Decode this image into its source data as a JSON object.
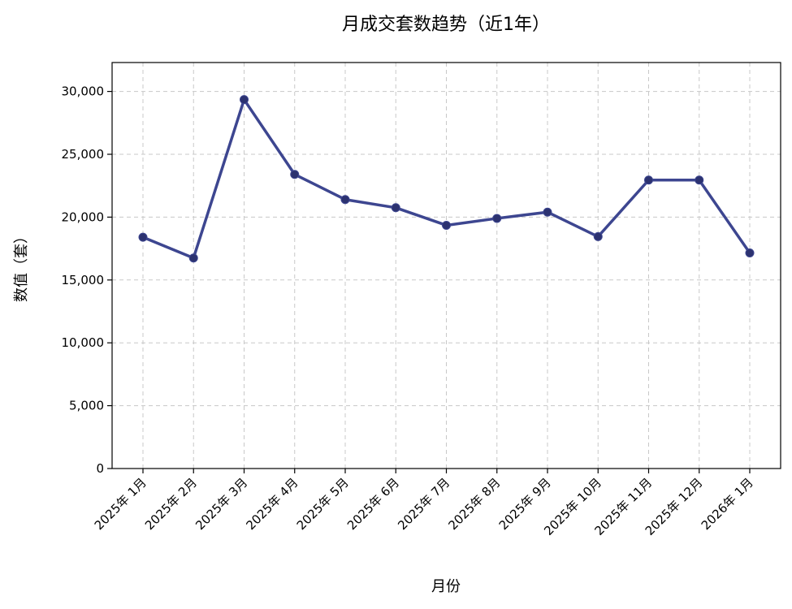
{
  "chart_data": {
    "type": "line",
    "title": "月成交套数趋势（近1年）",
    "xlabel": "月份",
    "ylabel": "数值（套）",
    "categories": [
      "2025年 1月",
      "2025年 2月",
      "2025年 3月",
      "2025年 4月",
      "2025年 5月",
      "2025年 6月",
      "2025年 7月",
      "2025年 8月",
      "2025年 9月",
      "2025年 10月",
      "2025年 11月",
      "2025年 12月",
      "2026年 1月"
    ],
    "series": [
      {
        "values": [
          18400,
          16750,
          29350,
          23400,
          21400,
          20750,
          19350,
          19900,
          20400,
          18450,
          22950,
          22950,
          17150
        ],
        "color": "#3d4690"
      }
    ],
    "ylim": [
      0,
      32300
    ],
    "yticks": [
      0,
      5000,
      10000,
      15000,
      20000,
      25000,
      30000
    ],
    "ytick_labels": [
      "0",
      "5,000",
      "10,000",
      "15,000",
      "20,000",
      "25,000",
      "30,000"
    ],
    "grid": true,
    "legend": "none"
  }
}
